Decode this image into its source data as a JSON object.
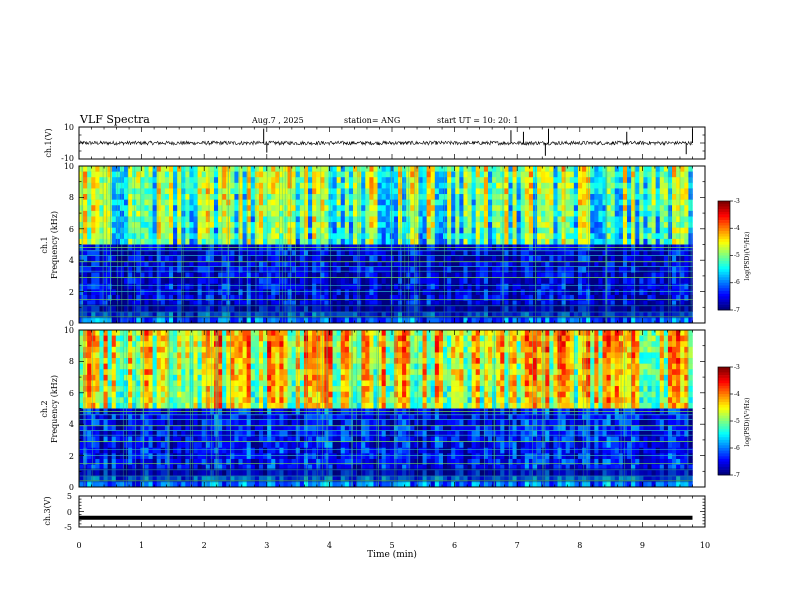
{
  "header": {
    "title": "VLF Spectra",
    "date": "Aug.7 , 2025",
    "station": "station= ANG",
    "start": "start UT = 10: 20: 1"
  },
  "chart_data": [
    {
      "type": "line",
      "name": "ch1-waveform",
      "ylabel": "ch.1(V)",
      "ylim": [
        -10,
        10
      ],
      "yticks": [
        "10",
        "-10"
      ],
      "xlim": [
        0,
        10
      ],
      "baseline": 0,
      "xmax_data": 9.8
    },
    {
      "type": "heatmap",
      "name": "ch1-spectrogram",
      "ylabel": "ch.1 Frequency (kHz)",
      "ylabel_line1": "ch.1",
      "ylabel_line2": "Frequency (kHz)",
      "ylim": [
        0,
        10
      ],
      "yticks": [
        "0",
        "2",
        "4",
        "6",
        "8",
        "10"
      ],
      "xlim": [
        0,
        10
      ],
      "xmax_data": 9.8,
      "colorbar": {
        "label": "log(PSD)(V²/Hz)",
        "min": -7,
        "max": -3,
        "ticks": [
          "-3",
          "-4",
          "-5",
          "-6",
          "-7"
        ]
      },
      "intensity_upper": 0.52,
      "intensity_lower": 0.12
    },
    {
      "type": "heatmap",
      "name": "ch2-spectrogram",
      "ylabel": "ch.2 Frequency (kHz)",
      "ylabel_line1": "ch.2",
      "ylabel_line2": "Frequency (kHz)",
      "ylim": [
        0,
        10
      ],
      "yticks": [
        "0",
        "2",
        "4",
        "6",
        "8",
        "10"
      ],
      "xlim": [
        0,
        10
      ],
      "xmax_data": 9.8,
      "colorbar": {
        "label": "log(PSD)(V²/Hz)",
        "min": -7,
        "max": -3,
        "ticks": [
          "-3",
          "-4",
          "-5",
          "-6",
          "-7"
        ]
      },
      "intensity_upper": 0.66,
      "intensity_lower": 0.16
    },
    {
      "type": "line",
      "name": "ch3-waveform",
      "ylabel": "ch.3(V)",
      "ylim": [
        -5,
        5
      ],
      "yticks": [
        "5",
        "0",
        "-5"
      ],
      "xlim": [
        0,
        10
      ],
      "baseline": -2,
      "xmax_data": 9.8,
      "xlabel": "Time (min)",
      "xticks": [
        "0",
        "1",
        "2",
        "3",
        "4",
        "5",
        "6",
        "7",
        "8",
        "9",
        "10"
      ]
    }
  ]
}
